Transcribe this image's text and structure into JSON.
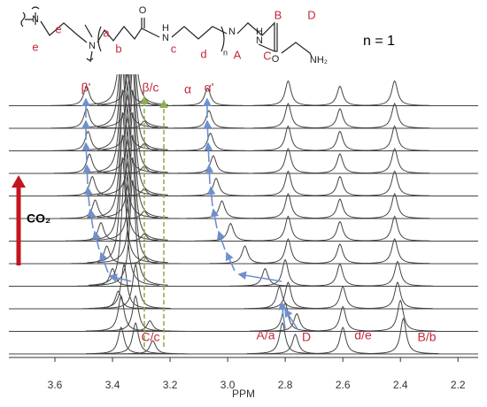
{
  "structure": {
    "atoms": [
      "N",
      "N",
      "O",
      "H",
      "N",
      "N",
      "O",
      "H",
      "N",
      "NH₂"
    ],
    "labels": [
      "e",
      "e",
      "a",
      "b",
      "c",
      "d",
      "A",
      "B",
      "C",
      "D"
    ],
    "repeat": "n",
    "note": "n = 1"
  },
  "chart_data": {
    "type": "nmr-stack",
    "xlabel": "PPM",
    "xlim": [
      3.76,
      2.13
    ],
    "xticks": [
      3.6,
      3.4,
      3.2,
      {
        "value": 3,
        "label": "3.0"
      },
      2.8,
      2.6,
      2.4,
      2.2
    ],
    "color": "#444444",
    "stimulus": "CO₂",
    "annotations": [
      "β'",
      "β/c",
      "α",
      "α'",
      "C/c",
      "A/a",
      "D",
      "d/e",
      "B/b"
    ],
    "series": [
      {
        "x": [
          3.37,
          3.32,
          3.26,
          2.81,
          2.765,
          2.6,
          2.39
        ],
        "values": [
          30,
          35,
          15,
          35,
          22,
          30,
          40
        ]
      },
      {
        "x": [
          3.37,
          3.32,
          3.27,
          2.8,
          2.76,
          2.6,
          2.4
        ],
        "values": [
          40,
          40,
          12,
          32,
          20,
          28,
          35
        ]
      },
      {
        "x": [
          3.38,
          3.36,
          3.32,
          2.82,
          2.79,
          2.6,
          2.41
        ],
        "values": [
          20,
          50,
          50,
          25,
          30,
          25,
          30
        ]
      },
      {
        "x": [
          3.4,
          3.36,
          3.33,
          2.87,
          2.8,
          2.61,
          2.41
        ],
        "values": [
          20,
          120,
          120,
          20,
          30,
          25,
          28
        ]
      },
      {
        "x": [
          3.42,
          3.365,
          3.33,
          3.29,
          2.94,
          2.79,
          2.61,
          2.42
        ],
        "values": [
          20,
          120,
          120,
          8,
          20,
          28,
          22,
          28
        ]
      },
      {
        "x": [
          3.44,
          3.365,
          3.33,
          3.29,
          2.99,
          2.79,
          2.61,
          2.42
        ],
        "values": [
          21,
          120,
          120,
          8,
          20,
          28,
          22,
          28
        ]
      },
      {
        "x": [
          3.46,
          3.365,
          3.33,
          3.29,
          3.02,
          2.79,
          2.61,
          2.42
        ],
        "values": [
          21,
          120,
          120,
          8,
          20,
          28,
          22,
          28
        ]
      },
      {
        "x": [
          3.47,
          3.365,
          3.33,
          3.29,
          3.04,
          2.79,
          2.61,
          2.42
        ],
        "values": [
          22,
          120,
          120,
          8,
          20,
          28,
          22,
          28
        ]
      },
      {
        "x": [
          3.48,
          3.365,
          3.33,
          3.29,
          3.05,
          2.79,
          2.61,
          2.42
        ],
        "values": [
          22,
          120,
          120,
          8,
          20,
          28,
          22,
          28
        ]
      },
      {
        "x": [
          3.485,
          3.365,
          3.33,
          3.29,
          3.06,
          2.79,
          2.61,
          2.42
        ],
        "values": [
          22,
          120,
          120,
          8,
          20,
          28,
          22,
          28
        ]
      },
      {
        "x": [
          3.49,
          3.365,
          3.33,
          3.29,
          3.065,
          2.79,
          2.61,
          2.42
        ],
        "values": [
          22,
          120,
          120,
          8,
          20,
          28,
          22,
          28
        ]
      },
      {
        "x": [
          3.49,
          3.365,
          3.33,
          3.29,
          3.07,
          2.79,
          2.61,
          2.42
        ],
        "values": [
          22,
          120,
          120,
          8,
          20,
          28,
          22,
          28
        ]
      }
    ]
  }
}
